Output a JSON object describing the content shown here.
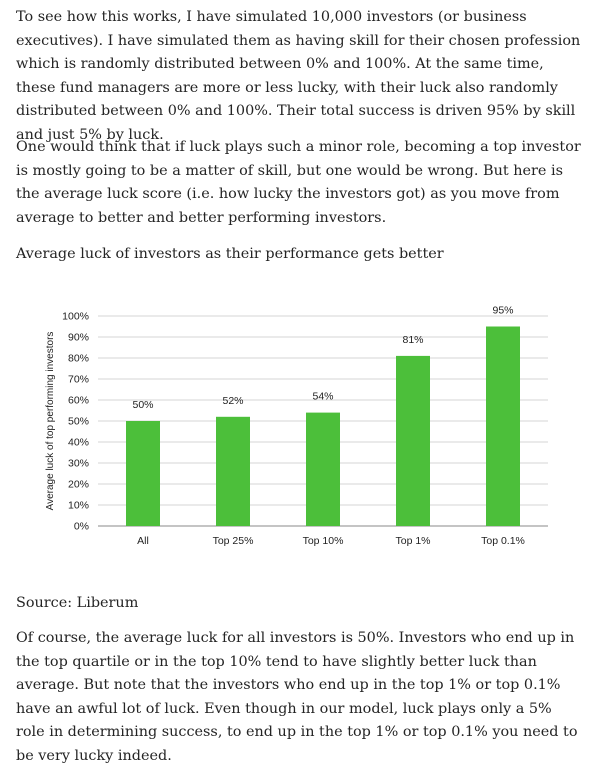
{
  "article": {
    "paragraph1": "To see how this works, I have simulated 10,000 investors (or business executives). I have simulated them as having skill for their chosen profession which is randomly distributed between 0% and 100%. At the same time, these fund managers are more or less lucky, with their luck also randomly distributed between 0% and 100%. Their total success is driven 95% by skill and just 5% by luck.",
    "paragraph2": "One would think that if luck plays such a minor role, becoming a top investor is mostly going to be a matter of skill, but one would be wrong. But here is the average luck score (i.e. how lucky the investors got) as you move from average to better and better performing investors.",
    "caption": "Average luck of investors as their performance gets better",
    "source": "Source: Liberum",
    "paragraph3": "Of course, the average luck for all investors is 50%. Investors who end up in the top quartile or in the top 10% tend to have slightly better luck than average. But note that the investors who end up in the top 1% or top 0.1% have an awful lot of luck. Even though in our model, luck plays only a 5% role in determining success, to end up in the top 1% or top 0.1% you need to be very lucky indeed."
  },
  "chart_data": {
    "type": "bar",
    "categories": [
      "All",
      "Top 25%",
      "Top 10%",
      "Top 1%",
      "Top 0.1%"
    ],
    "values": [
      50,
      52,
      54,
      81,
      95
    ],
    "value_labels": [
      "50%",
      "52%",
      "54%",
      "81%",
      "95%"
    ],
    "ylabel": "Average luck of top performing investors",
    "ylim": [
      0,
      100
    ],
    "yticks": [
      "0%",
      "10%",
      "20%",
      "30%",
      "40%",
      "50%",
      "60%",
      "70%",
      "80%",
      "90%",
      "100%"
    ],
    "grid": true,
    "bar_color": "#4cbf3a"
  }
}
